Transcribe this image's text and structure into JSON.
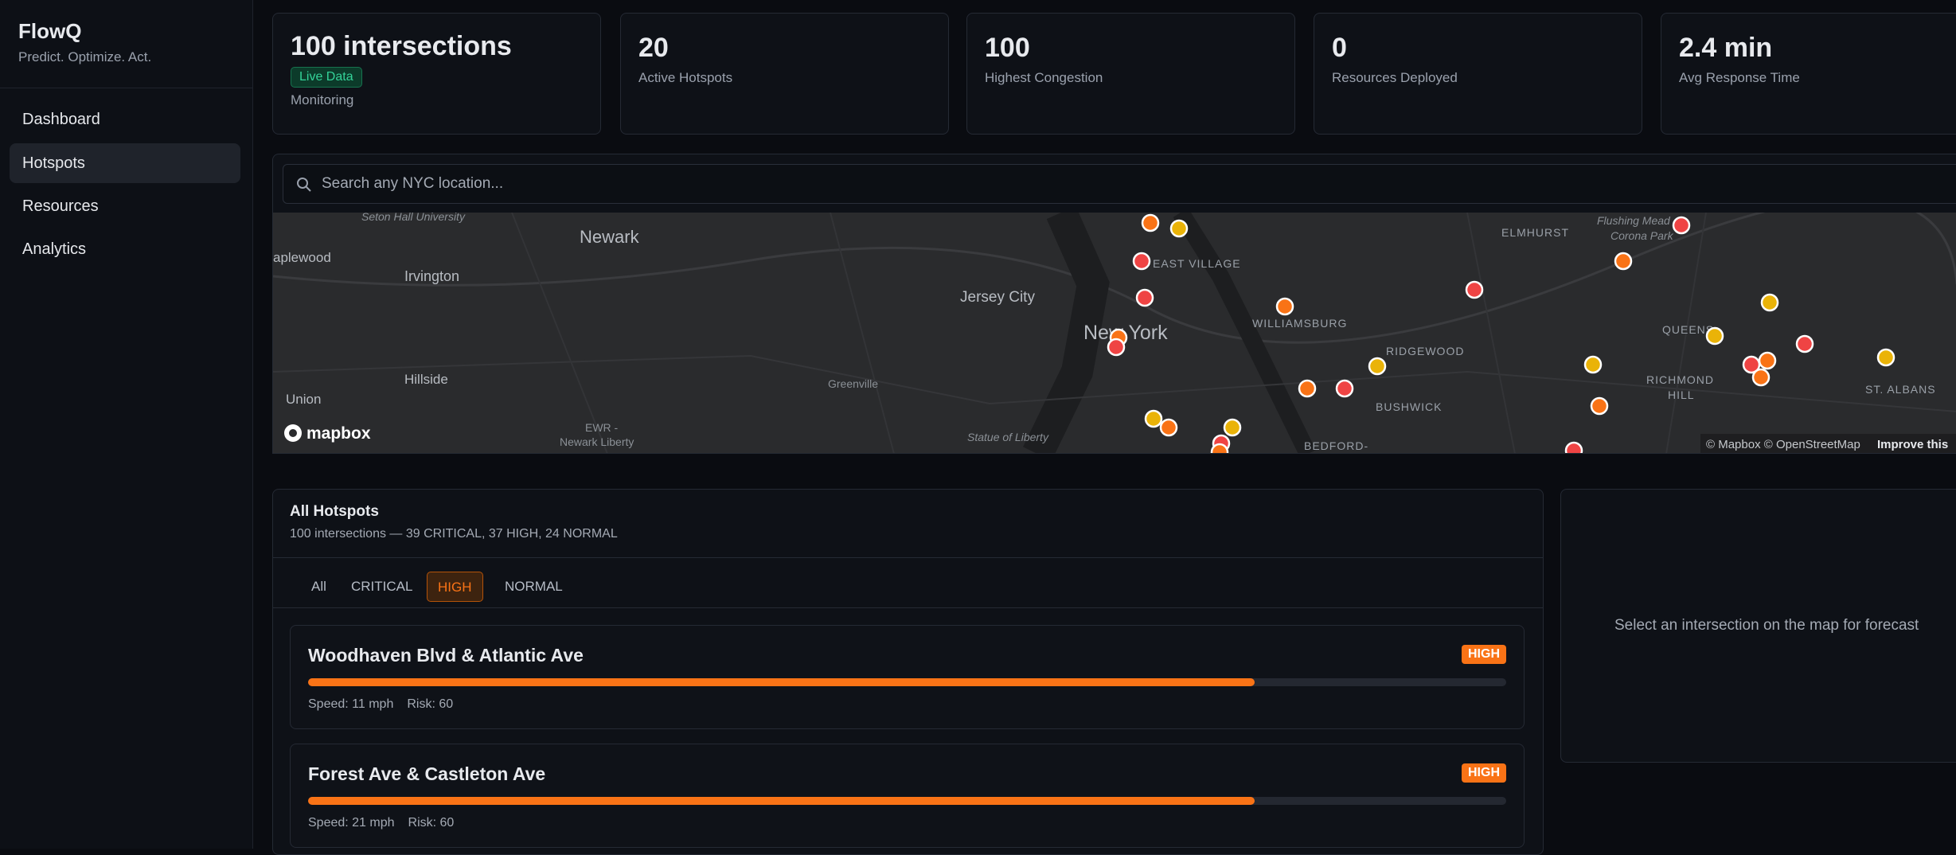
{
  "brand": {
    "name": "FlowQ",
    "tagline": "Predict. Optimize. Act."
  },
  "nav": [
    "Dashboard",
    "Hotspots",
    "Resources",
    "Analytics"
  ],
  "stats": [
    {
      "value": "100 intersections",
      "badge": "Live Data",
      "label": "Monitoring"
    },
    {
      "value": "20",
      "label": "Active Hotspots"
    },
    {
      "value": "100",
      "label": "Highest Congestion"
    },
    {
      "value": "0",
      "label": "Resources Deployed"
    },
    {
      "value": "2.4 min",
      "label": "Avg Response Time"
    }
  ],
  "search": {
    "placeholder": "Search any NYC location..."
  },
  "map": {
    "labels": [
      "Seton Hall University",
      "Newark",
      "aplewood",
      "Irvington",
      "Jersey City",
      "New York",
      "EAST VILLAGE",
      "WILLIAMSBURG",
      "ELMHURST",
      "Flushing Mead",
      "Corona Park",
      "RIDGEWOOD",
      "BUSHWICK",
      "QUEENS",
      "RICHMOND",
      "HILL",
      "ST. ALBANS",
      "Hillside",
      "Union",
      "Greenville",
      "EWR -",
      "Newark Liberty",
      "Statue of Liberty",
      "BEDFORD-"
    ],
    "logo": "mapbox",
    "attribution": "© Mapbox © OpenStreetMap",
    "improve": "Improve this"
  },
  "list": {
    "title": "All Hotspots",
    "subtitle": "100 intersections — 39 CRITICAL, 37 HIGH, 24 NORMAL",
    "filters": [
      "All",
      "CRITICAL",
      "HIGH",
      "NORMAL"
    ],
    "hotspots": [
      {
        "name": "Woodhaven Blvd & Atlantic Ave",
        "badge": "HIGH",
        "level": 79,
        "speed": "Speed: 11 mph",
        "risk": "Risk: 60"
      },
      {
        "name": "Forest Ave & Castleton Ave",
        "badge": "HIGH",
        "level": 79,
        "speed": "Speed: 21 mph",
        "risk": "Risk: 60"
      }
    ]
  },
  "forecast": {
    "placeholder": "Select an intersection on the map for forecast"
  }
}
